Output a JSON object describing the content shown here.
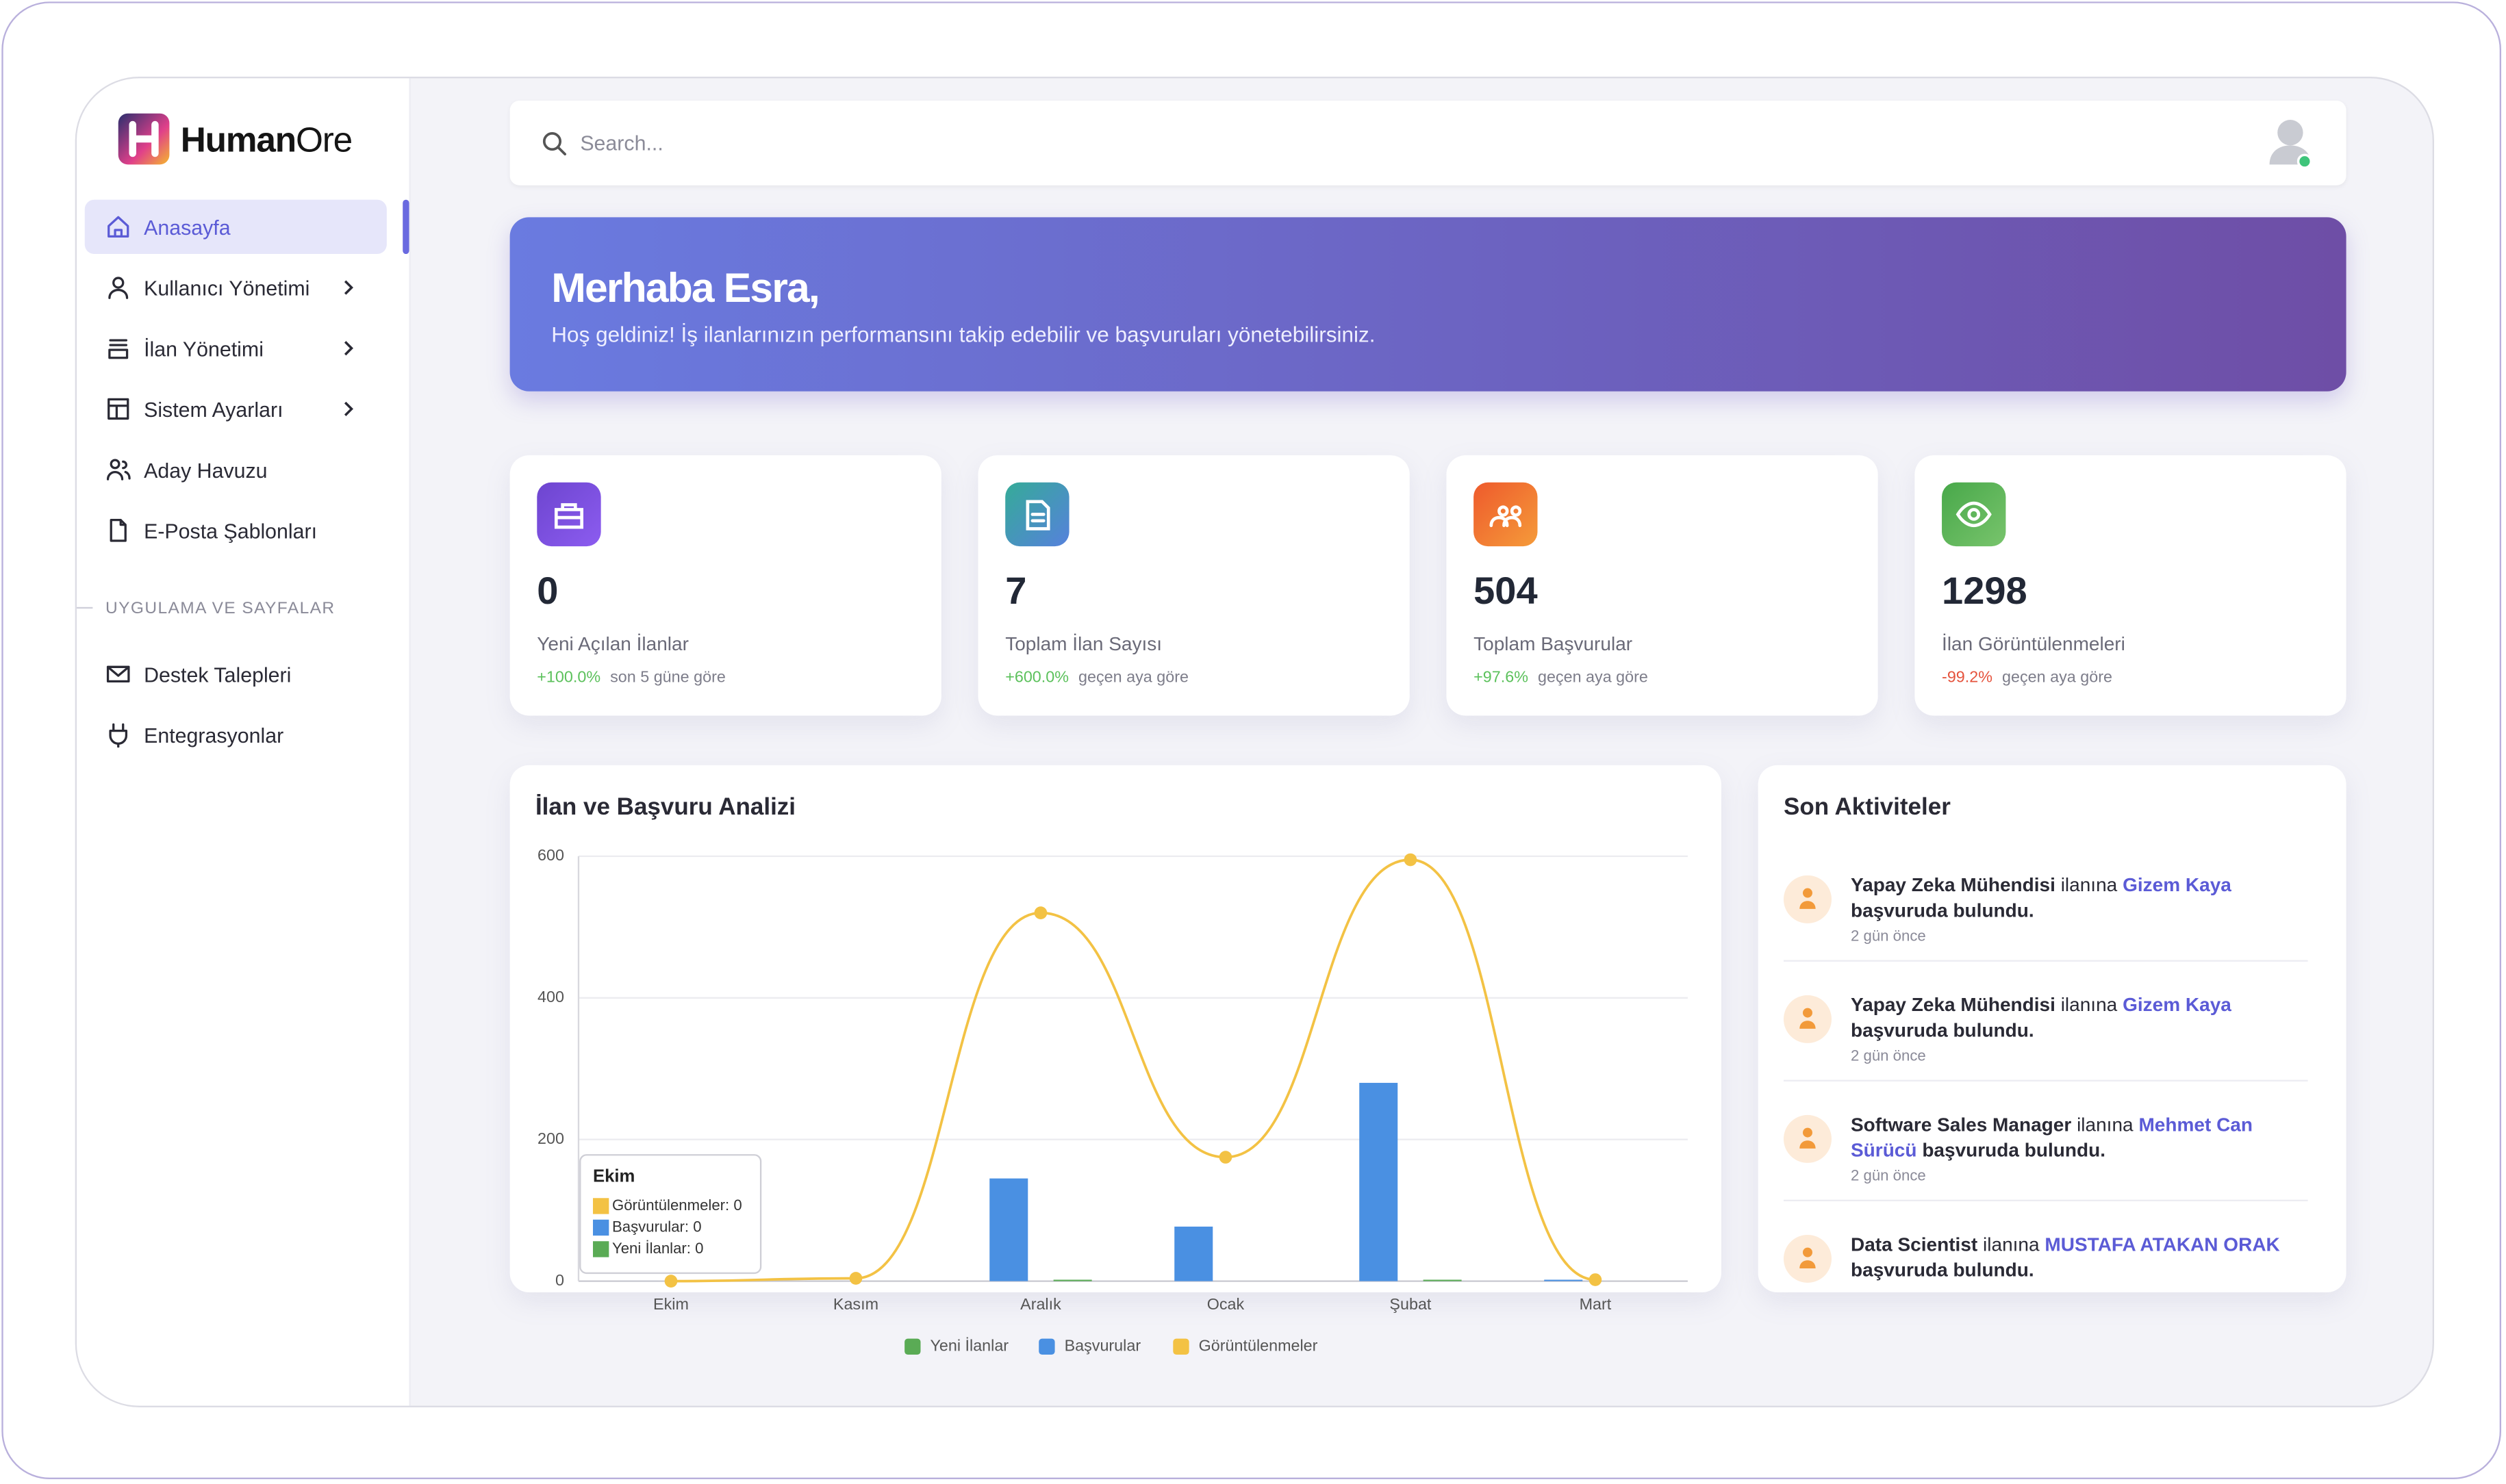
{
  "sidebar": {
    "logo": {
      "bold": "Human",
      "light": "Ore"
    },
    "menu": [
      {
        "label": "Anasayfa",
        "active": true,
        "submenu": false
      },
      {
        "label": "Kullanıcı Yönetimi",
        "active": false,
        "submenu": true
      },
      {
        "label": "İlan Yönetimi",
        "active": false,
        "submenu": true
      },
      {
        "label": "Sistem Ayarları",
        "active": false,
        "submenu": true
      },
      {
        "label": "Aday Havuzu",
        "active": false,
        "submenu": false
      },
      {
        "label": "E-Posta Şablonları",
        "active": false,
        "submenu": false
      }
    ],
    "section": "UYGULAMA VE SAYFALAR",
    "apps": [
      {
        "label": "Destek Talepleri"
      },
      {
        "label": "Entegrasyonlar"
      }
    ]
  },
  "search": {
    "placeholder": "Search..."
  },
  "banner": {
    "title": "Merhaba Esra,",
    "subtitle": "Hoş geldiniz! İş ilanlarınızın performansını takip edebilir ve başvuruları yönetebilirsiniz."
  },
  "stats": [
    {
      "value": 0,
      "label": "Yeni Açılan İlanlar",
      "change": "+100.0%",
      "period": "son 5 güne göre",
      "trend": "up",
      "colors": [
        "#6d45cf",
        "#8c5cf0"
      ]
    },
    {
      "value": 7,
      "label": "Toplam İlan Sayısı",
      "change": "+600.0%",
      "period": "geçen aya göre",
      "trend": "up",
      "colors": [
        "#35ab98",
        "#5681dc"
      ]
    },
    {
      "value": 504,
      "label": "Toplam Başvurular",
      "change": "+97.6%",
      "period": "geçen aya göre",
      "trend": "up",
      "colors": [
        "#ee5a2c",
        "#f59b3a"
      ]
    },
    {
      "value": 1298,
      "label": "İlan Görüntülenmeleri",
      "change": "-99.2%",
      "period": "geçen aya göre",
      "trend": "down",
      "colors": [
        "#48a84a",
        "#78c46c"
      ]
    }
  ],
  "chart_data": {
    "type": "bar",
    "title": "İlan ve Başvuru Analizi",
    "categories": [
      "Ekim",
      "Kasım",
      "Aralık",
      "Ocak",
      "Şubat",
      "Mart"
    ],
    "series": [
      {
        "name": "Yeni İlanlar",
        "type": "bar",
        "color": "#5aab55",
        "values": [
          0,
          0,
          2,
          0,
          2,
          0
        ]
      },
      {
        "name": "Başvurular",
        "type": "bar",
        "color": "#4a90e2",
        "values": [
          0,
          0,
          145,
          77,
          280,
          2
        ]
      },
      {
        "name": "Görüntülenmeler",
        "type": "line",
        "color": "#f3c244",
        "values": [
          0,
          4,
          520,
          175,
          595,
          2
        ]
      }
    ],
    "ylim": [
      0,
      600
    ],
    "yticks": [
      0,
      200,
      400,
      600
    ],
    "grid": true,
    "legend": "bottom",
    "tooltip": {
      "title": "Ekim",
      "items": [
        "Görüntülenmeler: 0",
        "Başvurular: 0",
        "Yeni İlanlar: 0"
      ]
    }
  },
  "activities": {
    "title": "Son Aktiviteler",
    "items": [
      {
        "job": "Yapay Zeka Mühendisi",
        "connector": "ilanına",
        "name": "Gizem Kaya",
        "action": "başvuruda bulundu.",
        "time": "2 gün önce"
      },
      {
        "job": "Yapay Zeka Mühendisi",
        "connector": "ilanına",
        "name": "Gizem Kaya",
        "action": "başvuruda bulundu.",
        "time": "2 gün önce"
      },
      {
        "job": "Software Sales Manager",
        "connector": "ilanına",
        "name": "Mehmet Can Sürücü",
        "action": "başvuruda bulundu.",
        "time": "2 gün önce"
      },
      {
        "job": "Data Scientist",
        "connector": "ilanına",
        "name": "MUSTAFA ATAKAN ORAK",
        "action": "başvuruda bulundu."
      }
    ]
  }
}
